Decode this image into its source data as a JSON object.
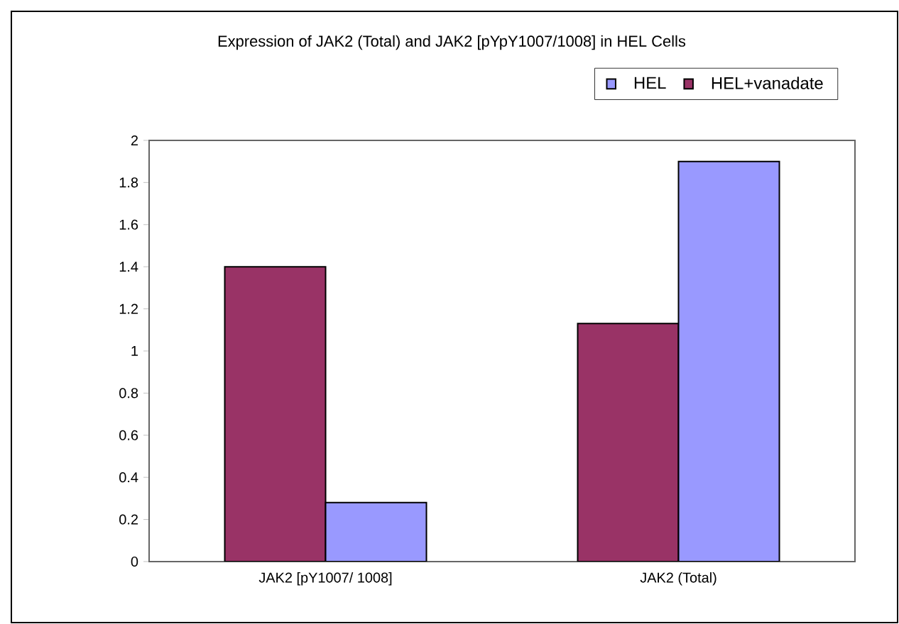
{
  "chart_data": {
    "type": "bar",
    "title": "Expression of JAK2 (Total) and JAK2 [pYpY1007/1008] in HEL Cells",
    "categories": [
      "JAK2 [pY1007/ 1008]",
      "JAK2 (Total)"
    ],
    "series": [
      {
        "name": "HEL+vanadate",
        "color": "#993366",
        "values": [
          1.4,
          1.13
        ]
      },
      {
        "name": "HEL",
        "color": "#9999ff",
        "values": [
          0.28,
          1.9
        ]
      }
    ],
    "ylim": [
      0,
      2
    ],
    "yticks": [
      0,
      0.2,
      0.4,
      0.6,
      0.8,
      1,
      1.2,
      1.4,
      1.6,
      1.8,
      2
    ],
    "grid": false,
    "legend": "top right"
  }
}
